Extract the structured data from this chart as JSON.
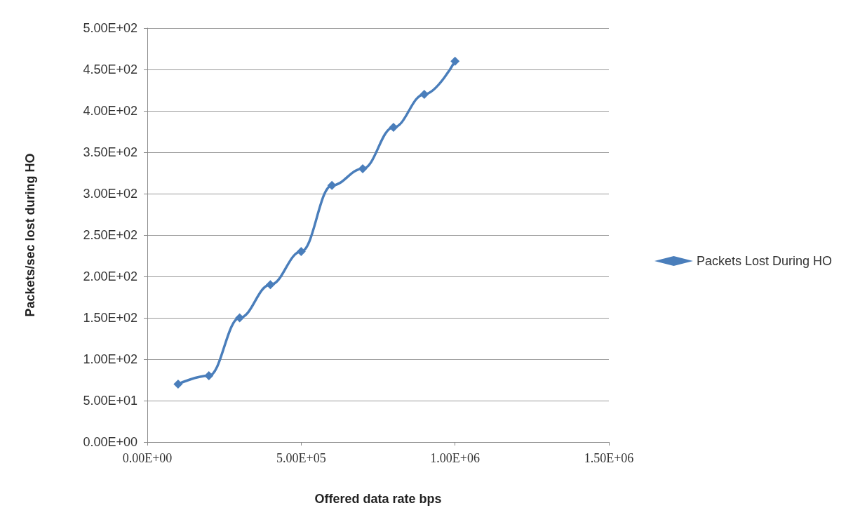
{
  "chart_data": {
    "type": "line",
    "xlabel": "Offered data rate bps",
    "ylabel": "Packets/sec lost during HO",
    "x": [
      100000,
      200000,
      300000,
      400000,
      500000,
      600000,
      700000,
      800000,
      900000,
      1000000
    ],
    "series": [
      {
        "name": "Packets Lost During HO",
        "color": "#4a7ebb",
        "values": [
          70,
          80,
          150,
          190,
          230,
          310,
          330,
          380,
          420,
          460
        ]
      }
    ],
    "xlim": [
      0,
      1500000
    ],
    "xticks": [
      {
        "value": 0,
        "label": "0.00E+00"
      },
      {
        "value": 500000,
        "label": "5.00E+05"
      },
      {
        "value": 1000000,
        "label": "1.00E+06"
      },
      {
        "value": 1500000,
        "label": "1.50E+06"
      }
    ],
    "ylim": [
      0,
      500
    ],
    "yticks": [
      {
        "value": 0,
        "label": "0.00E+00"
      },
      {
        "value": 50,
        "label": "5.00E+01"
      },
      {
        "value": 100,
        "label": "1.00E+02"
      },
      {
        "value": 150,
        "label": "1.50E+02"
      },
      {
        "value": 200,
        "label": "2.00E+02"
      },
      {
        "value": 250,
        "label": "2.50E+02"
      },
      {
        "value": 300,
        "label": "3.00E+02"
      },
      {
        "value": 350,
        "label": "3.50E+02"
      },
      {
        "value": 400,
        "label": "4.00E+02"
      },
      {
        "value": 450,
        "label": "4.50E+02"
      },
      {
        "value": 500,
        "label": "5.00E+02"
      }
    ],
    "grid": "y",
    "legend": "right",
    "marker": "diamond",
    "line_style": "solid"
  }
}
